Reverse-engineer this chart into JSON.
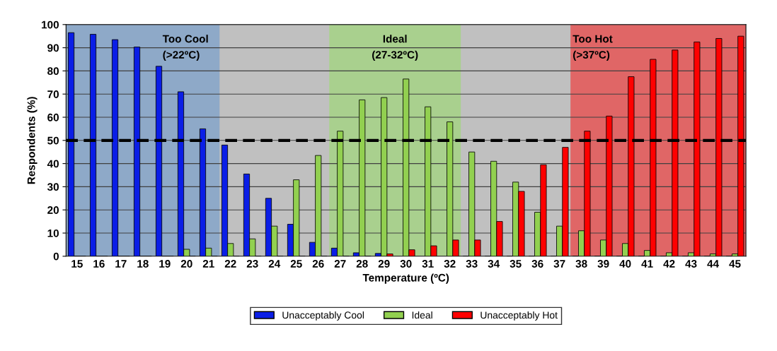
{
  "chart_data": {
    "type": "bar",
    "xlabel": "Temperature (ºC)",
    "ylabel": "Respondents (%)",
    "categories": [
      "15",
      "16",
      "17",
      "18",
      "19",
      "20",
      "21",
      "22",
      "23",
      "24",
      "25",
      "26",
      "27",
      "28",
      "29",
      "30",
      "31",
      "32",
      "33",
      "34",
      "35",
      "36",
      "37",
      "38",
      "39",
      "40",
      "41",
      "42",
      "43",
      "44",
      "45"
    ],
    "series": [
      {
        "name": "Unacceptably Cool",
        "color": "#0a1ee6",
        "values": [
          96.5,
          95.8,
          93.5,
          90.3,
          82,
          71,
          55,
          48,
          35.5,
          25,
          13.8,
          6,
          3.5,
          1.5,
          1.2,
          null,
          null,
          null,
          0,
          0,
          0,
          0,
          0,
          0,
          0,
          0,
          0,
          0,
          0,
          0,
          0
        ]
      },
      {
        "name": "Ideal",
        "color": "#92d050",
        "values": [
          0,
          0,
          0,
          0,
          0,
          3,
          3.5,
          5.5,
          7.5,
          13,
          33,
          43.5,
          54,
          67.5,
          68.5,
          76.5,
          64.5,
          58,
          45,
          41,
          32,
          19,
          13,
          11,
          7,
          5.5,
          2.5,
          1.5,
          1.5,
          1,
          1
        ]
      },
      {
        "name": "Unacceptably Hot",
        "color": "#ff0000",
        "values": [
          0,
          0,
          0,
          0,
          0,
          0,
          0,
          0,
          0,
          0,
          0,
          0,
          0,
          0,
          1,
          2.8,
          4.5,
          7,
          7,
          15,
          28,
          39.5,
          47,
          54,
          60.5,
          77.5,
          85,
          89,
          92.5,
          94,
          95
        ]
      }
    ],
    "ylim": [
      0,
      100
    ],
    "yticks": [
      0,
      10,
      20,
      30,
      40,
      50,
      60,
      70,
      80,
      90,
      100
    ],
    "grid": "y",
    "legend": "bottom",
    "ref_lines": [
      {
        "axis": "y",
        "value": 50,
        "color": "#000000",
        "line_style": "dashed"
      }
    ],
    "bands": [
      {
        "axis": "x",
        "from": "15",
        "to": "21",
        "label": "Too Cool\n(>22ºC)",
        "color": "#8ea9c8"
      },
      {
        "axis": "x",
        "from": "27",
        "to": "32",
        "label": "Ideal\n(27-32ºC)",
        "color": "#a9d08e"
      },
      {
        "axis": "x",
        "from": "38",
        "to": "45",
        "label": "Too Hot\n(>37ºC)",
        "color": "#e06666"
      }
    ]
  }
}
